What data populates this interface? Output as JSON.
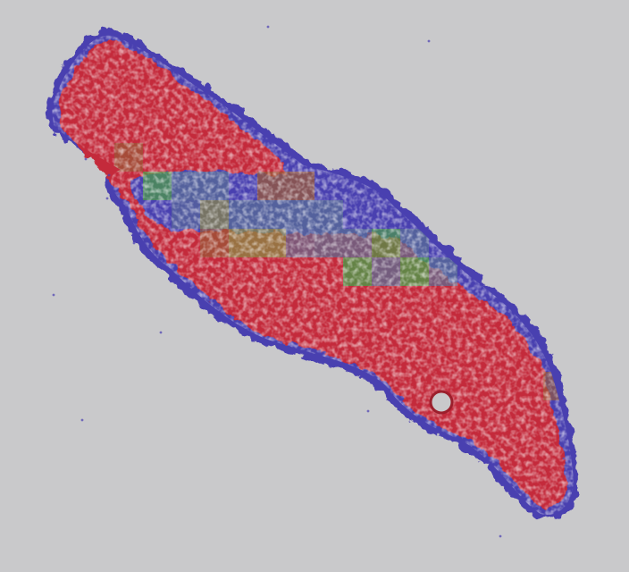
{
  "image": {
    "description_kind": "tissue-slide-heatmap-overlay",
    "background_color": "#c9c9cb"
  },
  "palette": {
    "tissue_red": "#c42a3a",
    "tissue_red_dark": "#9c1f2c",
    "tissue_blue": "#4a3fb0",
    "tile_green": "#4c9a4a",
    "tile_olive": "#8b8a46",
    "tile_brown": "#9a5a38",
    "tile_steel": "#5a6f96"
  }
}
